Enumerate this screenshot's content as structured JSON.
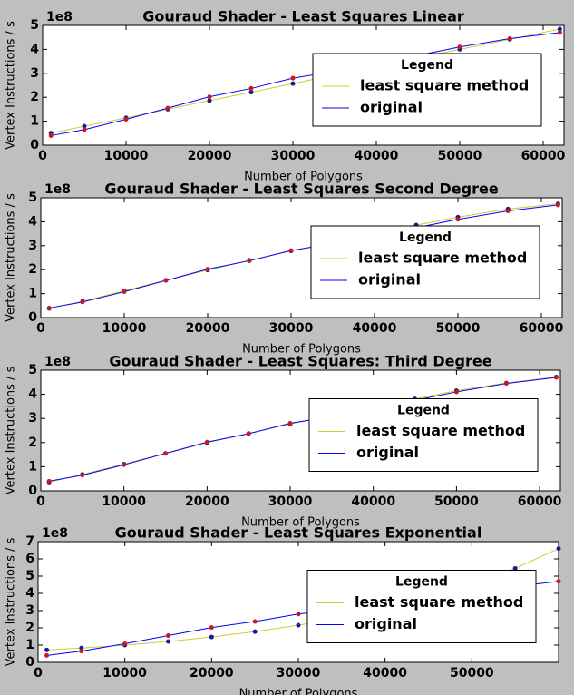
{
  "chart_data": [
    {
      "type": "line",
      "title": "Gouraud Shader - Least Squares Linear",
      "xlabel": "Number of Polygons",
      "ylabel": "Vertex Instructions / s",
      "y_offset_label": "1e8",
      "x": [
        1000,
        5000,
        10000,
        15000,
        20000,
        25000,
        30000,
        35000,
        40000,
        45000,
        50000,
        56000,
        62000
      ],
      "series": [
        {
          "name": "least square method",
          "color": "#cccc33",
          "marker_color": "#1a1a99",
          "values": [
            0.5,
            0.79,
            1.14,
            1.5,
            1.86,
            2.21,
            2.57,
            2.93,
            3.28,
            3.64,
            4.0,
            4.42,
            4.85
          ]
        },
        {
          "name": "original",
          "color": "#0000ff",
          "marker_color": "#cc1a1a",
          "values": [
            0.4,
            0.65,
            1.08,
            1.55,
            2.02,
            2.37,
            2.8,
            3.08,
            3.4,
            3.75,
            4.1,
            4.45,
            4.7
          ]
        }
      ],
      "xlim": [
        0,
        62500
      ],
      "ylim": [
        0,
        5
      ],
      "xticks": [
        0,
        10000,
        20000,
        30000,
        40000,
        50000,
        60000
      ],
      "yticks": [
        0,
        1,
        2,
        3,
        4,
        5
      ],
      "grid": false,
      "legend_title": "Legend",
      "legend_loc": "center right"
    },
    {
      "type": "line",
      "title": "Gouraud Shader - Least Squares Second Degree",
      "xlabel": "Number of Polygons",
      "ylabel": "Vertex Instructions / s",
      "y_offset_label": "1e8",
      "x": [
        1000,
        5000,
        10000,
        15000,
        20000,
        25000,
        30000,
        35000,
        40000,
        45000,
        50000,
        56000,
        62000
      ],
      "series": [
        {
          "name": "least square method",
          "color": "#cccc33",
          "marker_color": "#1a1a99",
          "values": [
            0.38,
            0.68,
            1.12,
            1.56,
            1.98,
            2.39,
            2.78,
            3.15,
            3.51,
            3.86,
            4.19,
            4.53,
            4.75
          ]
        },
        {
          "name": "original",
          "color": "#0000ff",
          "marker_color": "#cc1a1a",
          "values": [
            0.4,
            0.65,
            1.08,
            1.55,
            2.02,
            2.37,
            2.8,
            3.08,
            3.4,
            3.75,
            4.1,
            4.45,
            4.7
          ]
        }
      ],
      "xlim": [
        0,
        62500
      ],
      "ylim": [
        0,
        5
      ],
      "xticks": [
        0,
        10000,
        20000,
        30000,
        40000,
        50000,
        60000
      ],
      "yticks": [
        0,
        1,
        2,
        3,
        4,
        5
      ],
      "grid": false,
      "legend_title": "Legend",
      "legend_loc": "center right"
    },
    {
      "type": "line",
      "title": "Gouraud Shader - Least Squares: Third Degree",
      "xlabel": "Number of Polygons",
      "ylabel": "Vertex Instructions / s",
      "y_offset_label": "1e8",
      "x": [
        1000,
        5000,
        10000,
        15000,
        20000,
        25000,
        30000,
        35000,
        40000,
        45000,
        50000,
        56000,
        62000
      ],
      "series": [
        {
          "name": "least square method",
          "color": "#cccc33",
          "marker_color": "#1a1a99",
          "values": [
            0.36,
            0.68,
            1.11,
            1.55,
            1.99,
            2.38,
            2.77,
            3.13,
            3.48,
            3.81,
            4.15,
            4.47,
            4.72
          ]
        },
        {
          "name": "original",
          "color": "#0000ff",
          "marker_color": "#cc1a1a",
          "values": [
            0.4,
            0.65,
            1.08,
            1.55,
            2.02,
            2.37,
            2.8,
            3.08,
            3.4,
            3.75,
            4.1,
            4.45,
            4.7
          ]
        }
      ],
      "xlim": [
        0,
        62500
      ],
      "ylim": [
        0,
        5
      ],
      "xticks": [
        0,
        10000,
        20000,
        30000,
        40000,
        50000,
        60000
      ],
      "yticks": [
        0,
        1,
        2,
        3,
        4,
        5
      ],
      "grid": false,
      "legend_title": "Legend",
      "legend_loc": "center right"
    },
    {
      "type": "line",
      "title": "Gouraud Shader - Least Squares Exponential",
      "xlabel": "Number of Polygons",
      "ylabel": "Vertex Instructions / s",
      "y_offset_label": "1e8",
      "x": [
        1000,
        5000,
        10000,
        15000,
        20000,
        25000,
        30000,
        35000,
        40000,
        45000,
        50000,
        55000,
        60000
      ],
      "series": [
        {
          "name": "least square method",
          "color": "#cccc33",
          "marker_color": "#1a1a99",
          "values": [
            0.72,
            0.83,
            1.0,
            1.21,
            1.47,
            1.78,
            2.15,
            2.6,
            3.15,
            3.81,
            4.62,
            5.45,
            6.6
          ]
        },
        {
          "name": "original",
          "color": "#0000ff",
          "marker_color": "#cc1a1a",
          "values": [
            0.4,
            0.65,
            1.08,
            1.55,
            2.02,
            2.37,
            2.8,
            3.08,
            3.4,
            3.75,
            4.1,
            4.4,
            4.7
          ]
        }
      ],
      "xlim": [
        0,
        60000
      ],
      "ylim": [
        0,
        7
      ],
      "xticks": [
        0,
        10000,
        20000,
        30000,
        40000,
        50000
      ],
      "yticks": [
        0,
        1,
        2,
        3,
        4,
        5,
        6,
        7
      ],
      "grid": false,
      "legend_title": "Legend",
      "legend_loc": "center right"
    }
  ]
}
